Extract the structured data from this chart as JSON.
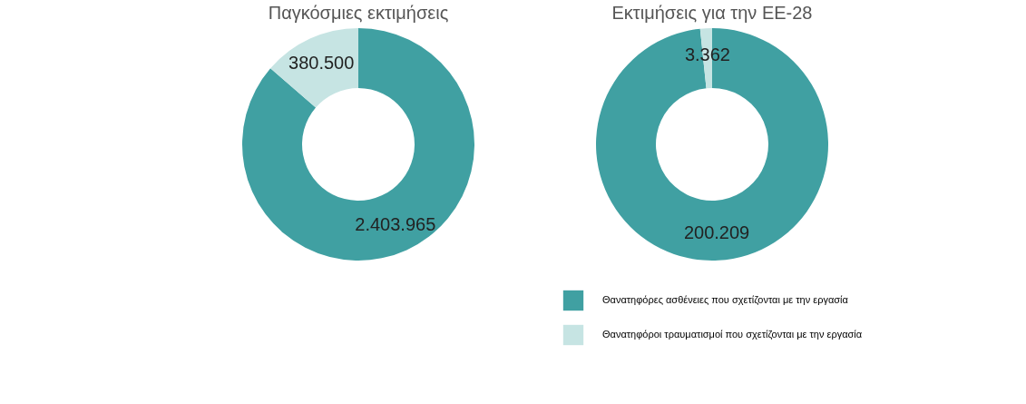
{
  "chart_data": [
    {
      "type": "donut",
      "title": "Παγκόσμιες εκτιμήσεις",
      "categories": [
        null,
        null
      ],
      "values": [
        2403965,
        380500
      ],
      "value_labels": [
        "2.403.965",
        "380.500"
      ],
      "colors": [
        "#40a0a2",
        "#c6e4e3"
      ]
    },
    {
      "type": "donut",
      "title": "Εκτιμήσεις για την ΕΕ-28",
      "categories": [
        "Θανατηφόρες ασθένειες που σχετίζονται με την εργασία",
        "Θανατηφόροι τραυματισμοί που σχετίζονται με την εργασία"
      ],
      "values": [
        200209,
        3362
      ],
      "value_labels": [
        "200.209",
        "3.362"
      ],
      "colors": [
        "#40a0a2",
        "#c6e4e3"
      ],
      "legend": "bottom"
    }
  ]
}
